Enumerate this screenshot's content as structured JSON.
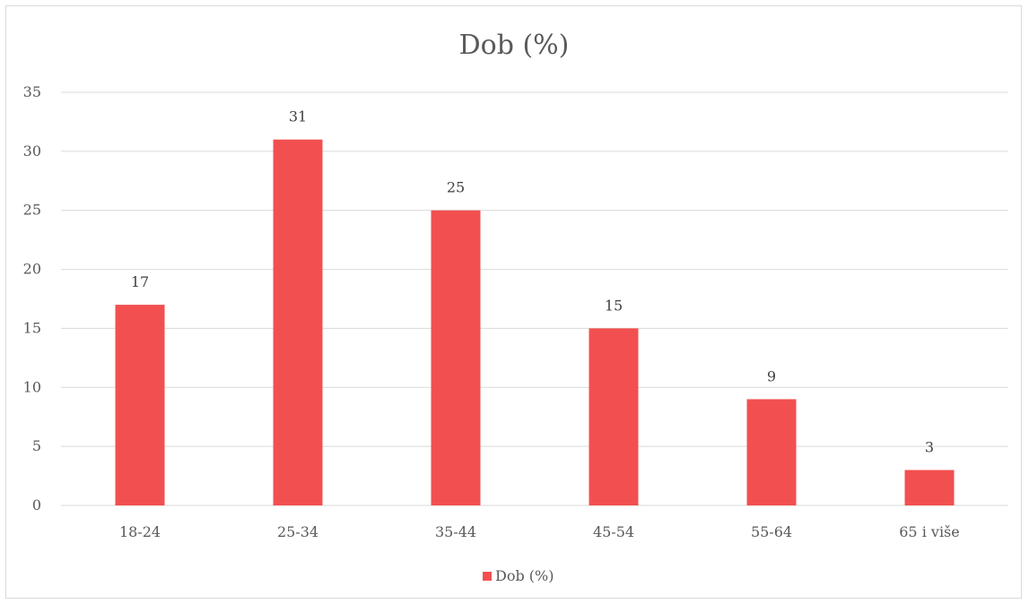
{
  "chart_data": {
    "type": "bar",
    "title": "Dob (%)",
    "categories": [
      "18-24",
      "25-34",
      "35-44",
      "45-54",
      "55-64",
      "65 i više"
    ],
    "series": [
      {
        "name": "Dob (%)",
        "values": [
          17,
          31,
          25,
          15,
          9,
          3
        ],
        "color": "#f25050"
      }
    ],
    "ylim": [
      0,
      35
    ],
    "yticks": [
      0,
      5,
      10,
      15,
      20,
      25,
      30,
      35
    ],
    "gridlines": true,
    "data_labels": true,
    "legend_position": "bottom"
  }
}
